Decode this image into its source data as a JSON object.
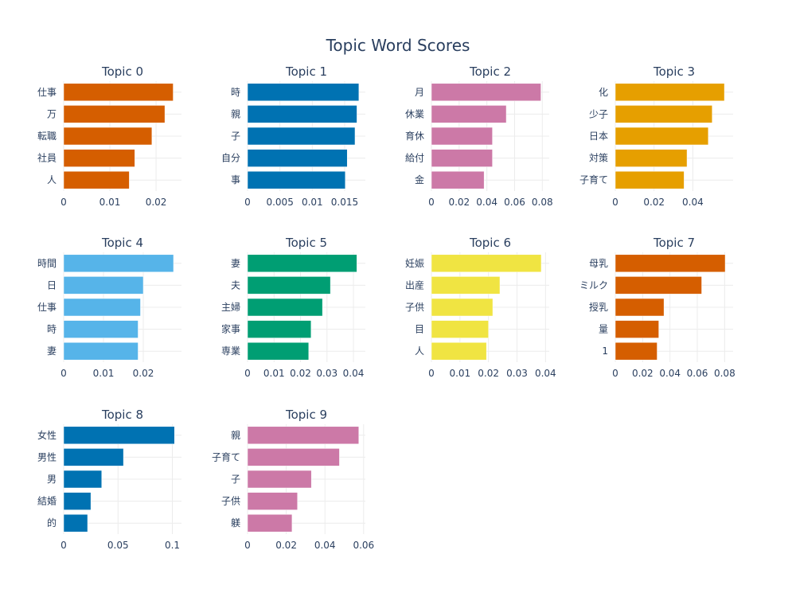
{
  "chart_data": {
    "type": "bar",
    "orientation": "horizontal",
    "title": "Topic Word Scores",
    "grid": true,
    "legend": "none",
    "subplots": [
      {
        "title": "Topic 0",
        "color": "#d55e00",
        "categories": [
          "仕事",
          "万",
          "転職",
          "社員",
          "人"
        ],
        "values": [
          0.0237,
          0.0219,
          0.0191,
          0.0154,
          0.0142
        ],
        "xlim": [
          0,
          0.0255
        ],
        "xticks": [
          0,
          0.01,
          0.02
        ],
        "xtick_labels": [
          "0",
          "0.01",
          "0.02"
        ]
      },
      {
        "title": "Topic 1",
        "color": "#0072b2",
        "categories": [
          "時",
          "親",
          "子",
          "自分",
          "事"
        ],
        "values": [
          0.0172,
          0.0169,
          0.0166,
          0.0154,
          0.0151
        ],
        "xlim": [
          0,
          0.0182
        ],
        "xticks": [
          0,
          0.005,
          0.01,
          0.015
        ],
        "xtick_labels": [
          "0",
          "0.005",
          "0.01",
          "0.015"
        ]
      },
      {
        "title": "Topic 2",
        "color": "#cc79a7",
        "categories": [
          "月",
          "休業",
          "育休",
          "給付",
          "金"
        ],
        "values": [
          0.079,
          0.054,
          0.044,
          0.044,
          0.038
        ],
        "xlim": [
          0,
          0.085
        ],
        "xticks": [
          0,
          0.02,
          0.04,
          0.06,
          0.08
        ],
        "xtick_labels": [
          "0",
          "0.02",
          "0.04",
          "0.06",
          "0.08"
        ]
      },
      {
        "title": "Topic 3",
        "color": "#e69f00",
        "categories": [
          "化",
          "少子",
          "日本",
          "対策",
          "子育て"
        ],
        "values": [
          0.0563,
          0.05,
          0.048,
          0.037,
          0.0355
        ],
        "xlim": [
          0,
          0.0608
        ],
        "xticks": [
          0,
          0.02,
          0.04
        ],
        "xtick_labels": [
          "0",
          "0.02",
          "0.04"
        ]
      },
      {
        "title": "Topic 4",
        "color": "#56b4e9",
        "categories": [
          "時間",
          "日",
          "仕事",
          "時",
          "妻"
        ],
        "values": [
          0.0276,
          0.02,
          0.0193,
          0.0187,
          0.0187
        ],
        "xlim": [
          0,
          0.0296
        ],
        "xticks": [
          0,
          0.01,
          0.02
        ],
        "xtick_labels": [
          "0",
          "0.01",
          "0.02"
        ]
      },
      {
        "title": "Topic 5",
        "color": "#009e73",
        "categories": [
          "妻",
          "夫",
          "主婦",
          "家事",
          "専業"
        ],
        "values": [
          0.0413,
          0.0313,
          0.0283,
          0.024,
          0.0231
        ],
        "xlim": [
          0,
          0.0445
        ],
        "xticks": [
          0,
          0.01,
          0.02,
          0.03,
          0.04
        ],
        "xtick_labels": [
          "0",
          "0.01",
          "0.02",
          "0.03",
          "0.04"
        ]
      },
      {
        "title": "Topic 6",
        "color": "#f0e442",
        "categories": [
          "妊娠",
          "出産",
          "子供",
          "目",
          "人"
        ],
        "values": [
          0.0385,
          0.024,
          0.0215,
          0.02,
          0.0193
        ],
        "xlim": [
          0,
          0.0413
        ],
        "xticks": [
          0,
          0.01,
          0.02,
          0.03,
          0.04
        ],
        "xtick_labels": [
          "0",
          "0.01",
          "0.02",
          "0.03",
          "0.04"
        ]
      },
      {
        "title": "Topic 7",
        "color": "#d55e00",
        "categories": [
          "母乳",
          "ミルク",
          "授乳",
          "量",
          "1"
        ],
        "values": [
          0.0804,
          0.0632,
          0.0356,
          0.0318,
          0.0306
        ],
        "xlim": [
          0,
          0.0862
        ],
        "xticks": [
          0,
          0.02,
          0.04,
          0.06,
          0.08
        ],
        "xtick_labels": [
          "0",
          "0.02",
          "0.04",
          "0.06",
          "0.08"
        ]
      },
      {
        "title": "Topic 8",
        "color": "#0072b2",
        "categories": [
          "女性",
          "男性",
          "男",
          "結婚",
          "的"
        ],
        "values": [
          0.102,
          0.055,
          0.035,
          0.025,
          0.022
        ],
        "xlim": [
          0,
          0.1084
        ],
        "xticks": [
          0,
          0.05,
          0.1
        ],
        "xtick_labels": [
          "0",
          "0.05",
          "0.1"
        ]
      },
      {
        "title": "Topic 9",
        "color": "#cc79a7",
        "categories": [
          "親",
          "子育て",
          "子",
          "子供",
          "躾"
        ],
        "values": [
          0.0575,
          0.0475,
          0.033,
          0.0258,
          0.023
        ],
        "xlim": [
          0,
          0.0609
        ],
        "xticks": [
          0,
          0.02,
          0.04,
          0.06
        ],
        "xtick_labels": [
          "0",
          "0.02",
          "0.04",
          "0.06"
        ]
      }
    ]
  }
}
